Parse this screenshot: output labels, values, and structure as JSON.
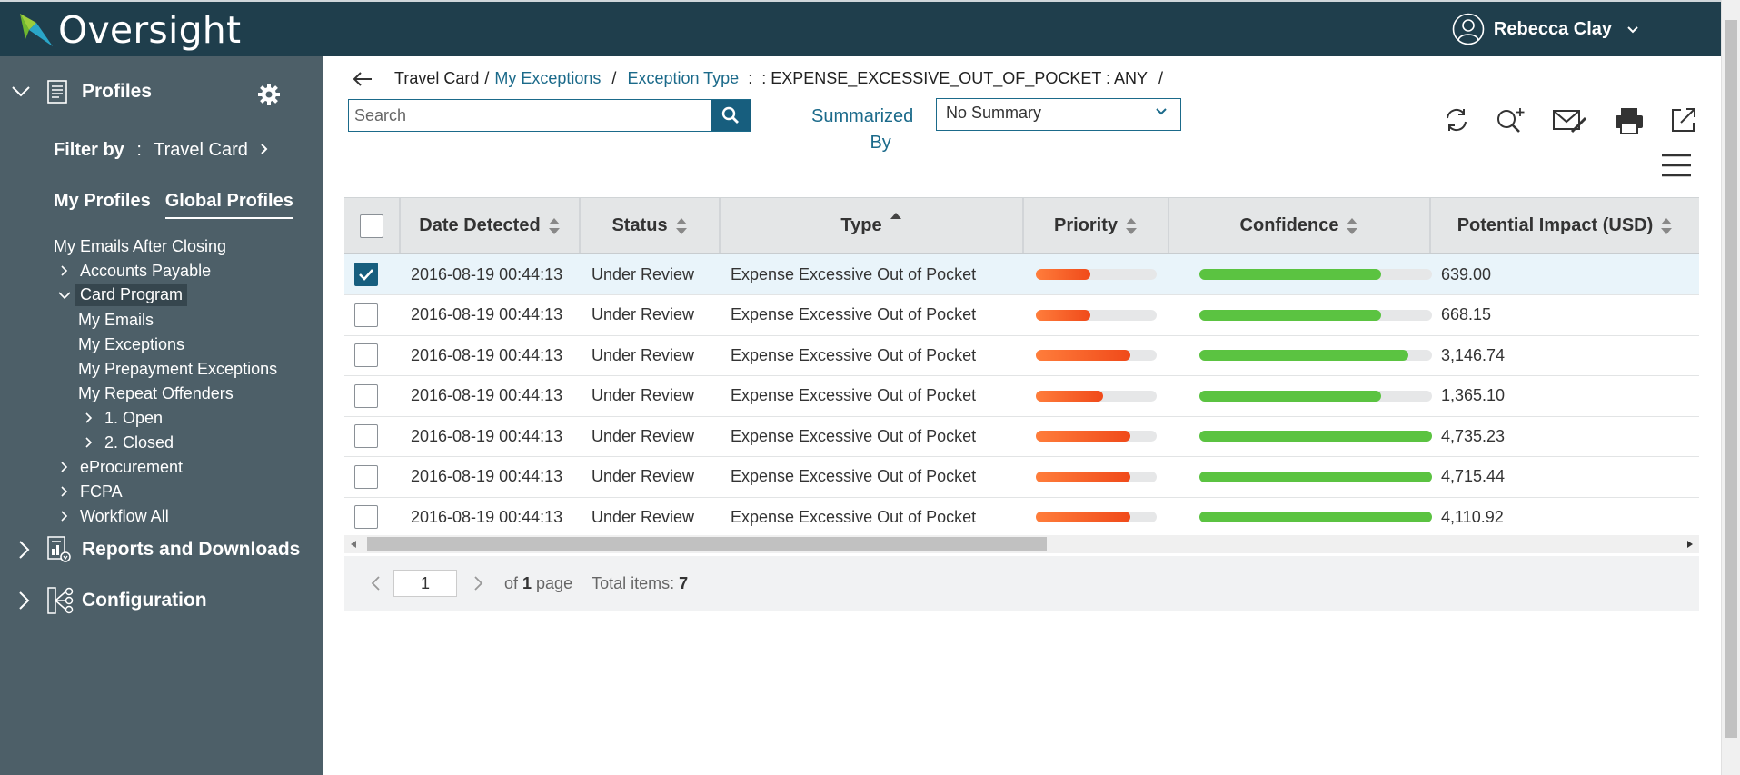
{
  "app": {
    "name": "Oversight",
    "user_name": "Rebecca Clay",
    "accent": "#1b6a8a",
    "header_bg": "#1f3e4c",
    "sidebar_bg": "#4d5f68"
  },
  "sidebar": {
    "profiles_label": "Profiles",
    "filter_by_label": "Filter by",
    "filter_by_sep": ":",
    "filter_by_value": "Travel Card",
    "tabs": [
      {
        "label": "My Profiles",
        "active": false
      },
      {
        "label": "Global Profiles",
        "active": true
      }
    ],
    "tree": [
      {
        "label": "My Emails After Closing"
      },
      {
        "label": "Accounts Payable"
      },
      {
        "label": "Card Program"
      },
      {
        "label": "My Emails"
      },
      {
        "label": "My Exceptions"
      },
      {
        "label": "My Prepayment Exceptions"
      },
      {
        "label": "My Repeat Offenders"
      },
      {
        "label": "1. Open"
      },
      {
        "label": "2. Closed"
      },
      {
        "label": "eProcurement"
      },
      {
        "label": "FCPA"
      },
      {
        "label": "Workflow All"
      }
    ],
    "reports_label": "Reports and Downloads",
    "config_label": "Configuration"
  },
  "breadcrumb": {
    "root": "Travel Card",
    "sep": "/",
    "link1": "My Exceptions",
    "link2": "Exception Type",
    "colon": ":",
    "value": ": EXPENSE_EXCESSIVE_OUT_OF_POCKET : ANY"
  },
  "toolbar": {
    "search_placeholder": "Search",
    "summarized_line1": "Summarized",
    "summarized_line2": "By",
    "summary_value": "No Summary"
  },
  "table": {
    "headers": [
      "Date Detected",
      "Status",
      "Type",
      "Priority",
      "Confidence",
      "Potential Impact (USD)"
    ],
    "rows": [
      {
        "selected": true,
        "date": "2016-08-19 00:44:13",
        "status": "Under Review",
        "type": "Expense Excessive Out of Pocket",
        "priority": 0.45,
        "confidence": 0.78,
        "impact": "639.00"
      },
      {
        "selected": false,
        "date": "2016-08-19 00:44:13",
        "status": "Under Review",
        "type": "Expense Excessive Out of Pocket",
        "priority": 0.45,
        "confidence": 0.78,
        "impact": "668.15"
      },
      {
        "selected": false,
        "date": "2016-08-19 00:44:13",
        "status": "Under Review",
        "type": "Expense Excessive Out of Pocket",
        "priority": 0.78,
        "confidence": 0.9,
        "impact": "3,146.74"
      },
      {
        "selected": false,
        "date": "2016-08-19 00:44:13",
        "status": "Under Review",
        "type": "Expense Excessive Out of Pocket",
        "priority": 0.56,
        "confidence": 0.78,
        "impact": "1,365.10"
      },
      {
        "selected": false,
        "date": "2016-08-19 00:44:13",
        "status": "Under Review",
        "type": "Expense Excessive Out of Pocket",
        "priority": 0.78,
        "confidence": 1.0,
        "impact": "4,735.23"
      },
      {
        "selected": false,
        "date": "2016-08-19 00:44:13",
        "status": "Under Review",
        "type": "Expense Excessive Out of Pocket",
        "priority": 0.78,
        "confidence": 1.0,
        "impact": "4,715.44"
      },
      {
        "selected": false,
        "date": "2016-08-19 00:44:13",
        "status": "Under Review",
        "type": "Expense Excessive Out of Pocket",
        "priority": 0.78,
        "confidence": 1.0,
        "impact": "4,110.92"
      }
    ]
  },
  "pager": {
    "page": "1",
    "of_label": "of",
    "total_pages": "1",
    "page_label": "page",
    "total_label": "Total items:",
    "total_items": "7"
  }
}
